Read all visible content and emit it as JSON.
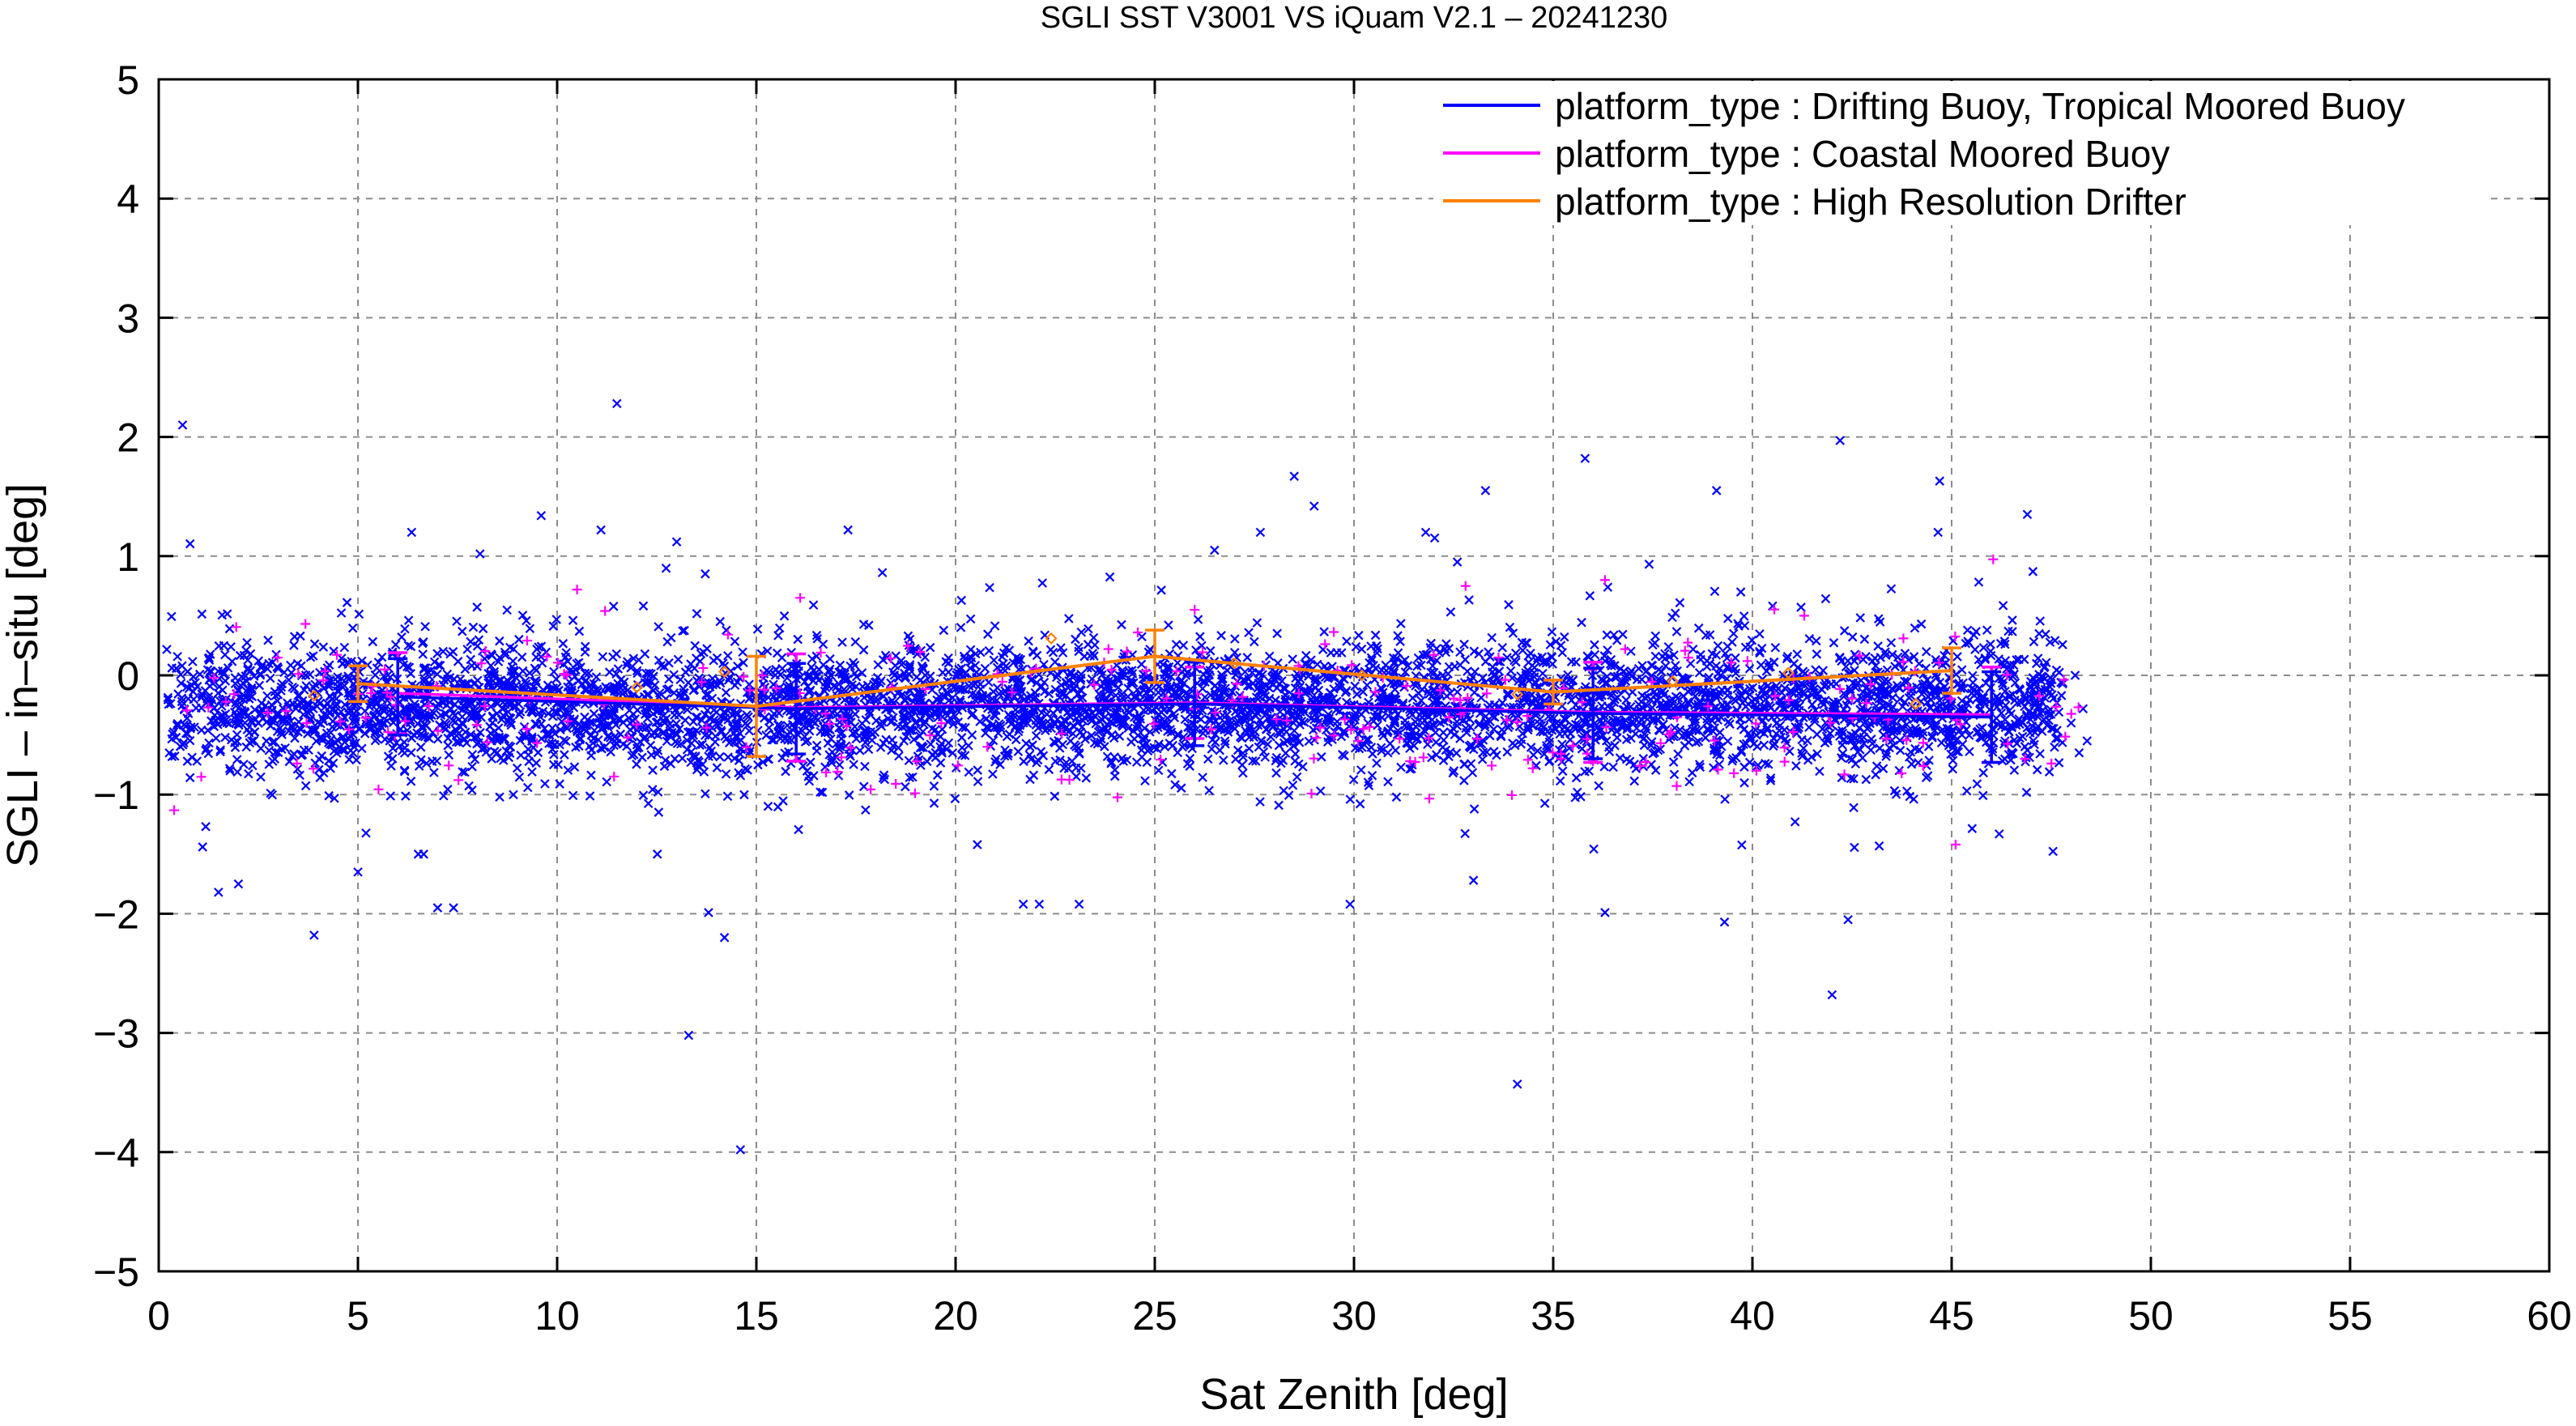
{
  "chart_data": {
    "type": "scatter",
    "title": "SGLI SST V3001 VS iQuam V2.1  – 20241230",
    "xlabel": "Sat Zenith [deg]",
    "ylabel": "SGLI – in–situ [deg]",
    "xlim": [
      0,
      60
    ],
    "ylim": [
      -5,
      5
    ],
    "xticks": [
      0,
      5,
      10,
      15,
      20,
      25,
      30,
      35,
      40,
      45,
      50,
      55,
      60
    ],
    "yticks": [
      -5,
      -4,
      -3,
      -2,
      -1,
      0,
      1,
      2,
      3,
      4,
      5
    ],
    "xtick_labels": [
      "0",
      "5",
      "10",
      "15",
      "20",
      "25",
      "30",
      "35",
      "40",
      "45",
      "50",
      "55",
      "60"
    ],
    "ytick_labels": [
      "−5",
      "−4",
      "−3",
      "−2",
      "−1",
      "0",
      "1",
      "2",
      "3",
      "4",
      "5"
    ],
    "grid": true,
    "legend_position": "top-right",
    "series": [
      {
        "name": "platform_type : Drifting Buoy, Tropical Moored Buoy",
        "color": "#0000ff",
        "marker": "x",
        "mean_line": {
          "x": [
            6,
            16,
            26,
            36,
            46
          ],
          "y": [
            -0.18,
            -0.28,
            -0.24,
            -0.32,
            -0.35
          ],
          "std": [
            0.32,
            0.38,
            0.35,
            0.38,
            0.38
          ]
        },
        "scatter_summary": {
          "x_range": [
            0.2,
            47.8
          ],
          "core_y_range": [
            -1.0,
            0.6
          ]
        },
        "outliers": [
          [
            0.6,
            2.1
          ],
          [
            11.5,
            2.28
          ],
          [
            14.6,
            -3.98
          ],
          [
            13.3,
            -3.02
          ],
          [
            34.1,
            -3.43
          ],
          [
            42.0,
            -2.68
          ],
          [
            28.5,
            1.67
          ],
          [
            35.8,
            1.82
          ],
          [
            42.2,
            1.97
          ],
          [
            44.7,
            1.63
          ],
          [
            3.9,
            -2.18
          ],
          [
            14.2,
            -2.2
          ],
          [
            9.6,
            1.34
          ],
          [
            11.1,
            1.22
          ],
          [
            17.3,
            1.22
          ],
          [
            13.0,
            1.12
          ],
          [
            26.5,
            1.05
          ],
          [
            33.3,
            1.55
          ],
          [
            39.1,
            1.55
          ],
          [
            46.9,
            1.35
          ],
          [
            7.0,
            -1.95
          ],
          [
            7.4,
            -1.95
          ],
          [
            29.0,
            1.42
          ],
          [
            1.5,
            -1.82
          ],
          [
            2.0,
            -1.75
          ],
          [
            5.0,
            -1.65
          ],
          [
            21.7,
            -1.92
          ],
          [
            22.1,
            -1.92
          ],
          [
            23.1,
            -1.92
          ],
          [
            29.9,
            -1.92
          ],
          [
            39.3,
            -2.07
          ],
          [
            42.4,
            -2.05
          ],
          [
            13.8,
            -1.99
          ],
          [
            33.0,
            -1.72
          ],
          [
            36.3,
            -1.99
          ]
        ]
      },
      {
        "name": "platform_type : Coastal Moored Buoy",
        "color": "#ff00ff",
        "marker": "+",
        "mean_line": {
          "x": [
            6,
            16,
            26,
            36,
            46
          ],
          "y": [
            -0.15,
            -0.27,
            -0.23,
            -0.31,
            -0.33
          ],
          "std": [
            0.34,
            0.45,
            0.3,
            0.42,
            0.4
          ]
        },
        "points": [
          [
            10.5,
            0.72
          ],
          [
            16.1,
            0.65
          ],
          [
            26.0,
            0.55
          ],
          [
            32.8,
            0.75
          ],
          [
            36.3,
            0.8
          ],
          [
            20.8,
            -0.6
          ],
          [
            30.1,
            -0.55
          ],
          [
            40.1,
            -0.8
          ],
          [
            45.1,
            -1.42
          ],
          [
            3.2,
            -0.3
          ],
          [
            24.3,
            0.2
          ],
          [
            41.3,
            0.5
          ],
          [
            8.1,
            0.1
          ],
          [
            18.4,
            -0.1
          ],
          [
            36.0,
            -0.72
          ]
        ]
      },
      {
        "name": "platform_type : High Resolution Drifter",
        "color": "#ff8000",
        "marker": "diamond",
        "mean_line": {
          "x": [
            5,
            15,
            25,
            35,
            45
          ],
          "y": [
            -0.07,
            -0.26,
            0.16,
            -0.14,
            0.04
          ],
          "std": [
            0.15,
            0.42,
            0.22,
            0.1,
            0.19
          ]
        },
        "points": [
          [
            3.9,
            -0.17
          ],
          [
            14.2,
            0.03
          ],
          [
            22.4,
            0.31
          ],
          [
            27.0,
            0.1
          ],
          [
            34.1,
            -0.16
          ],
          [
            40.9,
            0.02
          ],
          [
            44.1,
            -0.24
          ],
          [
            12.0,
            -0.1
          ],
          [
            30.2,
            0.0
          ],
          [
            38.0,
            -0.05
          ]
        ]
      }
    ]
  }
}
